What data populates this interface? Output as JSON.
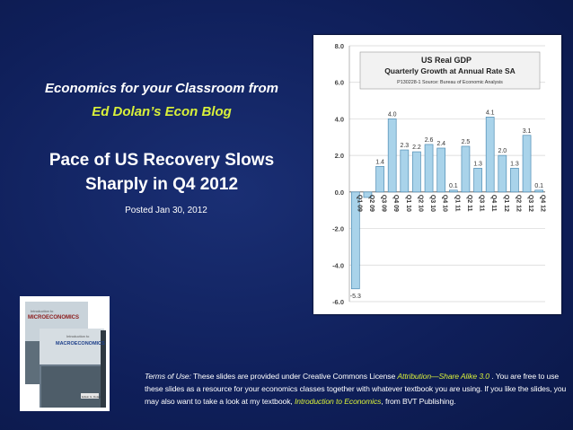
{
  "slide": {
    "series_line1": "Economics for your Classroom from",
    "series_line2": "Ed Dolan’s Econ Blog",
    "headline_line1": "Pace of US Recovery Slows",
    "headline_line2": "Sharply in Q4 2012",
    "posted": "Posted Jan 30, 2012"
  },
  "terms": {
    "label": "Terms of Use:",
    "text1": " These slides are provided under Creative Commons License ",
    "license_link": "Attribution—Share Alike 3.0",
    "text2": " . You are free to use these slides as a resource for your economics classes together with whatever textbook you are using. If you like the slides, you may also want to take a look at my textbook, ",
    "book_link": "Introduction to Economics",
    "text3": ", from BVT Publishing."
  },
  "books": {
    "book1_title": "MICROECONOMICS",
    "book1_subtitle": "Introduction to",
    "book2_title": "MACROECONOMICS",
    "book2_subtitle": "Introduction to",
    "author": "Edwin G. Dolan"
  },
  "colors": {
    "bar_fill": "#a9d3ea",
    "bar_stroke": "#4f8db4",
    "background": "#0f1f5a",
    "accent": "#d9f03a"
  },
  "chart_data": {
    "type": "bar",
    "title": "US Real GDP",
    "subtitle": "Quarterly Growth at Annual Rate SA",
    "source": "P130228-1 Source: Bureau of Economic Analysis",
    "categories": [
      "Q1 09",
      "Q2 09",
      "Q3 09",
      "Q4 09",
      "Q1 10",
      "Q2 10",
      "Q3 10",
      "Q4 10",
      "Q1 11",
      "Q2 11",
      "Q3 11",
      "Q4 11",
      "Q1 12",
      "Q2 12",
      "Q3 12",
      "Q4 12"
    ],
    "values": [
      -5.3,
      -0.3,
      1.4,
      4.0,
      2.3,
      2.2,
      2.6,
      2.4,
      0.1,
      2.5,
      1.3,
      4.1,
      2.0,
      1.3,
      3.1,
      0.1
    ],
    "value_labels": [
      "-5.3",
      "",
      "1.4",
      "4.0",
      "2.3",
      "2.2",
      "2.6",
      "2.4",
      "0.1",
      "2.5",
      "1.3",
      "4.1",
      "2.0",
      "1.3",
      "3.1",
      "0.1"
    ],
    "yticks": [
      "8.0",
      "6.0",
      "4.0",
      "2.0",
      "0.0",
      "-2.0",
      "-4.0",
      "-6.0"
    ],
    "ylim": [
      -6,
      8
    ],
    "grid": true,
    "legend": "none"
  }
}
